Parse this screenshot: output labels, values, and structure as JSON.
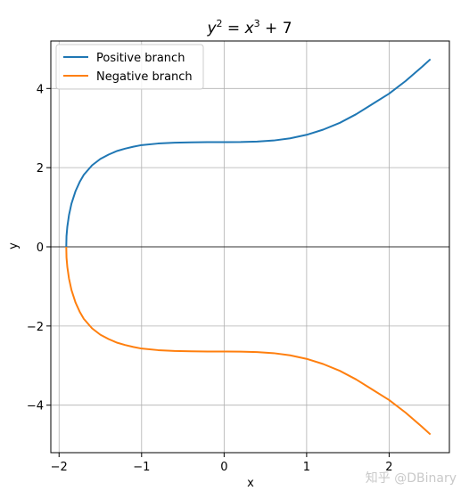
{
  "chart_data": {
    "type": "line",
    "title": {
      "prefix": "y",
      "exp1": "2",
      "mid": " = x",
      "exp2": "3",
      "suffix": " + 7"
    },
    "xlabel": "x",
    "ylabel": "y",
    "xlim": [
      -2.1,
      2.73
    ],
    "ylim": [
      -5.2,
      5.2
    ],
    "xticks": [
      -2,
      -1,
      0,
      1,
      2
    ],
    "xtick_labels": [
      "−2",
      "−1",
      "0",
      "1",
      "2"
    ],
    "yticks": [
      -4,
      -2,
      0,
      2,
      4
    ],
    "ytick_labels": [
      "−4",
      "−2",
      "0",
      "2",
      "4"
    ],
    "grid": true,
    "hline_y": 0,
    "legend_position": "upper-left",
    "series": [
      {
        "name": "Positive branch",
        "color": "#1f77b4",
        "x": [
          -1.9129,
          -1.91,
          -1.9,
          -1.88,
          -1.85,
          -1.8,
          -1.75,
          -1.7,
          -1.6,
          -1.5,
          -1.4,
          -1.3,
          -1.2,
          -1.1,
          -1.0,
          -0.8,
          -0.6,
          -0.4,
          -0.2,
          0.0,
          0.2,
          0.4,
          0.6,
          0.8,
          1.0,
          1.2,
          1.4,
          1.6,
          1.8,
          2.0,
          2.2,
          2.4,
          2.5
        ],
        "y": [
          0.0,
          0.27,
          0.51,
          0.8,
          1.09,
          1.41,
          1.64,
          1.82,
          2.06,
          2.22,
          2.33,
          2.42,
          2.48,
          2.53,
          2.57,
          2.61,
          2.63,
          2.64,
          2.645,
          2.646,
          2.647,
          2.658,
          2.686,
          2.74,
          2.83,
          2.96,
          3.13,
          3.35,
          3.61,
          3.87,
          4.19,
          4.55,
          4.74
        ]
      },
      {
        "name": "Negative branch",
        "color": "#ff7f0e",
        "x": [
          -1.9129,
          -1.91,
          -1.9,
          -1.88,
          -1.85,
          -1.8,
          -1.75,
          -1.7,
          -1.6,
          -1.5,
          -1.4,
          -1.3,
          -1.2,
          -1.1,
          -1.0,
          -0.8,
          -0.6,
          -0.4,
          -0.2,
          0.0,
          0.2,
          0.4,
          0.6,
          0.8,
          1.0,
          1.2,
          1.4,
          1.6,
          1.8,
          2.0,
          2.2,
          2.4,
          2.5
        ],
        "y": [
          0.0,
          -0.27,
          -0.51,
          -0.8,
          -1.09,
          -1.41,
          -1.64,
          -1.82,
          -2.06,
          -2.22,
          -2.33,
          -2.42,
          -2.48,
          -2.53,
          -2.57,
          -2.61,
          -2.63,
          -2.64,
          -2.645,
          -2.646,
          -2.647,
          -2.658,
          -2.686,
          -2.74,
          -2.83,
          -2.96,
          -3.13,
          -3.35,
          -3.61,
          -3.87,
          -4.19,
          -4.55,
          -4.74
        ]
      }
    ]
  },
  "watermark": "知乎 @DBinary"
}
